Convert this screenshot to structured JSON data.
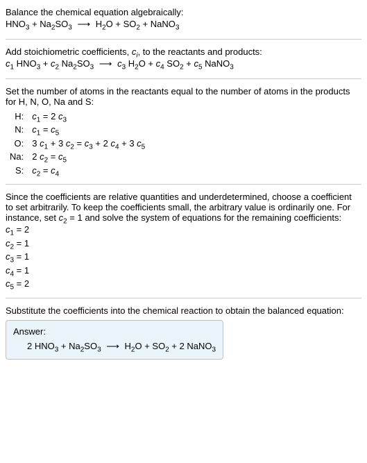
{
  "intro": {
    "title": "Balance the chemical equation algebraically:",
    "reaction": "HNO₃ + Na₂SO₃ ⟶ H₂O + SO₂ + NaNO₃"
  },
  "stoich": {
    "text_prefix": "Add stoichiometric coefficients, ",
    "text_sym": "cᵢ",
    "text_suffix": ", to the reactants and products:",
    "reaction": "c₁ HNO₃ + c₂ Na₂SO₃ ⟶ c₃ H₂O + c₄ SO₂ + c₅ NaNO₃"
  },
  "atoms": {
    "text": "Set the number of atoms in the reactants equal to the number of atoms in the products for H, N, O, Na and S:",
    "rows": [
      {
        "label": "H:",
        "eq": "c₁ = 2 c₃"
      },
      {
        "label": "N:",
        "eq": "c₁ = c₅"
      },
      {
        "label": "O:",
        "eq": "3 c₁ + 3 c₂ = c₃ + 2 c₄ + 3 c₅"
      },
      {
        "label": "Na:",
        "eq": "2 c₂ = c₅"
      },
      {
        "label": "S:",
        "eq": "c₂ = c₄"
      }
    ]
  },
  "solve": {
    "text": "Since the coefficients are relative quantities and underdetermined, choose a coefficient to set arbitrarily. To keep the coefficients small, the arbitrary value is ordinarily one. For instance, set c₂ = 1 and solve the system of equations for the remaining coefficients:",
    "coeffs": [
      "c₁ = 2",
      "c₂ = 1",
      "c₃ = 1",
      "c₄ = 1",
      "c₅ = 2"
    ]
  },
  "result": {
    "text": "Substitute the coefficients into the chemical reaction to obtain the balanced equation:",
    "answer_label": "Answer:",
    "answer_eq": "2 HNO₃ + Na₂SO₃ ⟶ H₂O + SO₂ + 2 NaNO₃"
  },
  "colors": {
    "separator": "#cccccc",
    "answer_bg": "#eaf5fb",
    "answer_border": "#c0c0c0",
    "text": "#000000"
  },
  "fontsize": {
    "body": 13,
    "sub": 10
  }
}
